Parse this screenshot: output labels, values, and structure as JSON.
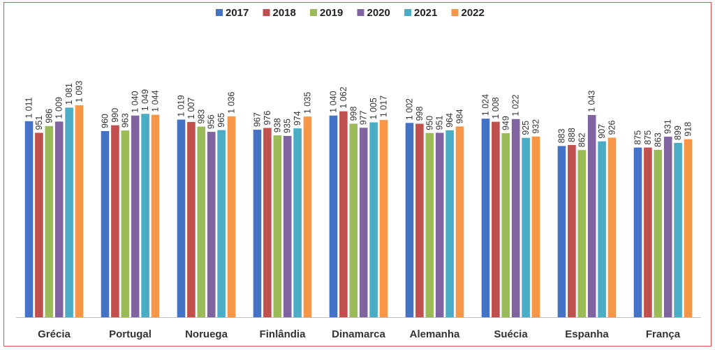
{
  "chart_data": {
    "type": "bar",
    "categories": [
      "Grécia",
      "Portugal",
      "Noruega",
      "Finlândia",
      "Dinamarca",
      "Alemanha",
      "Suécia",
      "Espanha",
      "França"
    ],
    "series": [
      {
        "name": "2017",
        "color": "#4472c4",
        "values": [
          1011,
          960,
          1019,
          967,
          1040,
          1002,
          1024,
          883,
          875
        ],
        "labels": [
          "1 011",
          "960",
          "1 019",
          "967",
          "1 040",
          "1 002",
          "1 024",
          "883",
          "875"
        ]
      },
      {
        "name": "2018",
        "color": "#c0504d",
        "values": [
          951,
          990,
          1007,
          976,
          1062,
          998,
          1008,
          888,
          875
        ],
        "labels": [
          "951",
          "990",
          "1 007",
          "976",
          "1 062",
          "998",
          "1 008",
          "888",
          "875"
        ]
      },
      {
        "name": "2019",
        "color": "#9bbb59",
        "values": [
          986,
          963,
          983,
          938,
          998,
          950,
          949,
          862,
          863
        ],
        "labels": [
          "986",
          "963",
          "983",
          "938",
          "998",
          "950",
          "949",
          "862",
          "863"
        ]
      },
      {
        "name": "2020",
        "color": "#8064a2",
        "values": [
          1009,
          1040,
          956,
          935,
          977,
          951,
          1022,
          1043,
          931
        ],
        "labels": [
          "1 009",
          "1 040",
          "956",
          "935",
          "977",
          "951",
          "1 022",
          "1 043",
          "931"
        ]
      },
      {
        "name": "2021",
        "color": "#4bacc6",
        "values": [
          1081,
          1049,
          965,
          974,
          1005,
          964,
          925,
          907,
          899
        ],
        "labels": [
          "1 081",
          "1 049",
          "965",
          "974",
          "1 005",
          "964",
          "925",
          "907",
          "899"
        ]
      },
      {
        "name": "2022",
        "color": "#f79646",
        "values": [
          1093,
          1044,
          1036,
          1035,
          1017,
          984,
          932,
          926,
          918
        ],
        "labels": [
          "1 093",
          "1 044",
          "1 036",
          "1 035",
          "1 017",
          "984",
          "932",
          "926",
          "918"
        ]
      }
    ],
    "ylim": [
      0,
      1093
    ],
    "legend_position": "top",
    "grid": false,
    "title": "",
    "xlabel": "",
    "ylabel": ""
  }
}
